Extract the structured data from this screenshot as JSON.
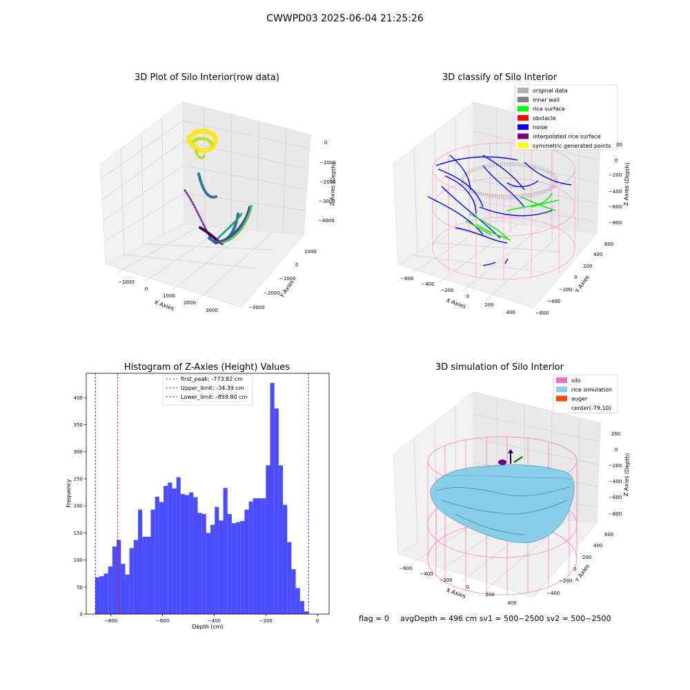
{
  "suptitle": "CWWPD03 2025-06-04 21:25:26",
  "footer": {
    "flag": "flag = 0",
    "stats": "avgDepth = 496 cm  sv1 = 500~2500  sv2 = 500~2500"
  },
  "colors": {
    "histogram_bar": "#4c4cff",
    "first_peak_line": "#ff0000",
    "limit_lines": "#0000ff",
    "silo_wire": "#ff69b4",
    "rice_surface": "#7ecbe4",
    "rice_green": "#00ff00",
    "noise_blue": "#0000ff",
    "viridis_dark": "#440154",
    "viridis_mid": "#21918c",
    "viridis_light": "#fde725"
  },
  "panel_raw": {
    "title": "3D Plot of Silo Interior(row data)",
    "xlabel": "X Axies",
    "ylabel": "Y Axies",
    "zlabel": "Z Axies (Depth)",
    "xticks": [
      "−1000",
      "0",
      "1000",
      "2000",
      "3000"
    ],
    "yticks": [
      "1000",
      "0",
      "−1000",
      "−2000",
      "−3000"
    ],
    "zticks": [
      "0",
      "−1000",
      "−2000",
      "−3000",
      "−4000"
    ]
  },
  "panel_classify": {
    "title": "3D classify of Silo Interior",
    "xlabel": "X Axies",
    "ylabel": "Y Axies",
    "zlabel": "Z Axies (Depth)",
    "xticks": [
      "−600",
      "−400",
      "−200",
      "0",
      "200",
      "400"
    ],
    "yticks": [
      "600",
      "400",
      "200",
      "0",
      "−200",
      "−400",
      "−600"
    ],
    "zticks": [
      "0",
      "−200",
      "−400",
      "−600",
      "−800"
    ],
    "partial_tick": "00",
    "legend": [
      {
        "label": "original data",
        "color": "#b0b0b0"
      },
      {
        "label": "inner wall",
        "color": "#808080"
      },
      {
        "label": "rice surface",
        "color": "#00ff00"
      },
      {
        "label": "obstacle",
        "color": "#ff0000"
      },
      {
        "label": "noise",
        "color": "#0000ff"
      },
      {
        "label": "interpolated rice surface",
        "color": "#800080"
      },
      {
        "label": "symmetric generated points",
        "color": "#ffff00"
      }
    ]
  },
  "panel_sim": {
    "title": "3D simulation of Silo Interior",
    "xlabel": "X Axies",
    "ylabel": "Y Axies",
    "zlabel": "Z Axies (Depth)",
    "xticks": [
      "−600",
      "−400",
      "−200",
      "0",
      "200",
      "400"
    ],
    "yticks": [
      "600",
      "400",
      "200",
      "0",
      "−200",
      "−400"
    ],
    "zticks": [
      "200",
      "0",
      "−200",
      "−400",
      "−600",
      "−800"
    ],
    "legend": [
      {
        "label": "silo",
        "color": "#ff69b4"
      },
      {
        "label": "rice simulation",
        "color": "#87ceeb"
      },
      {
        "label": "auger",
        "color": "#ff4500"
      },
      {
        "label": "center(-79,10)",
        "color": "#ffffff"
      }
    ]
  },
  "chart_data": {
    "type": "bar",
    "title": "Histogram of Z-Axies (Height) Values",
    "xlabel": "Depth (cm)",
    "ylabel": "Frequency",
    "xlim": [
      -895,
      45
    ],
    "ylim": [
      0,
      445
    ],
    "xticks": [
      -800,
      -600,
      -400,
      -200,
      0
    ],
    "yticks": [
      0,
      50,
      100,
      150,
      200,
      250,
      300,
      350,
      400
    ],
    "xtick_labels": [
      "−800",
      "−600",
      "−400",
      "−200",
      "0"
    ],
    "bin_start": -859.8,
    "bin_width": 16.5,
    "values": [
      68,
      70,
      75,
      88,
      125,
      137,
      93,
      73,
      122,
      137,
      193,
      143,
      143,
      193,
      217,
      207,
      237,
      243,
      232,
      253,
      222,
      220,
      225,
      216,
      187,
      185,
      150,
      165,
      198,
      173,
      233,
      185,
      168,
      170,
      172,
      193,
      208,
      214,
      214,
      214,
      275,
      427,
      380,
      275,
      202,
      133,
      83,
      48,
      24,
      5
    ],
    "vlines": [
      {
        "label": "first_peak: -773.82 cm",
        "x": -773.82,
        "color": "#ff0000"
      },
      {
        "label": "Upper_limit: -34.39 cm",
        "x": -34.39,
        "color": "#0000ff"
      },
      {
        "label": "Lower_limit: -859.80 cm",
        "x": -859.8,
        "color": "#0000ff"
      }
    ],
    "legend_position": "top-center"
  }
}
